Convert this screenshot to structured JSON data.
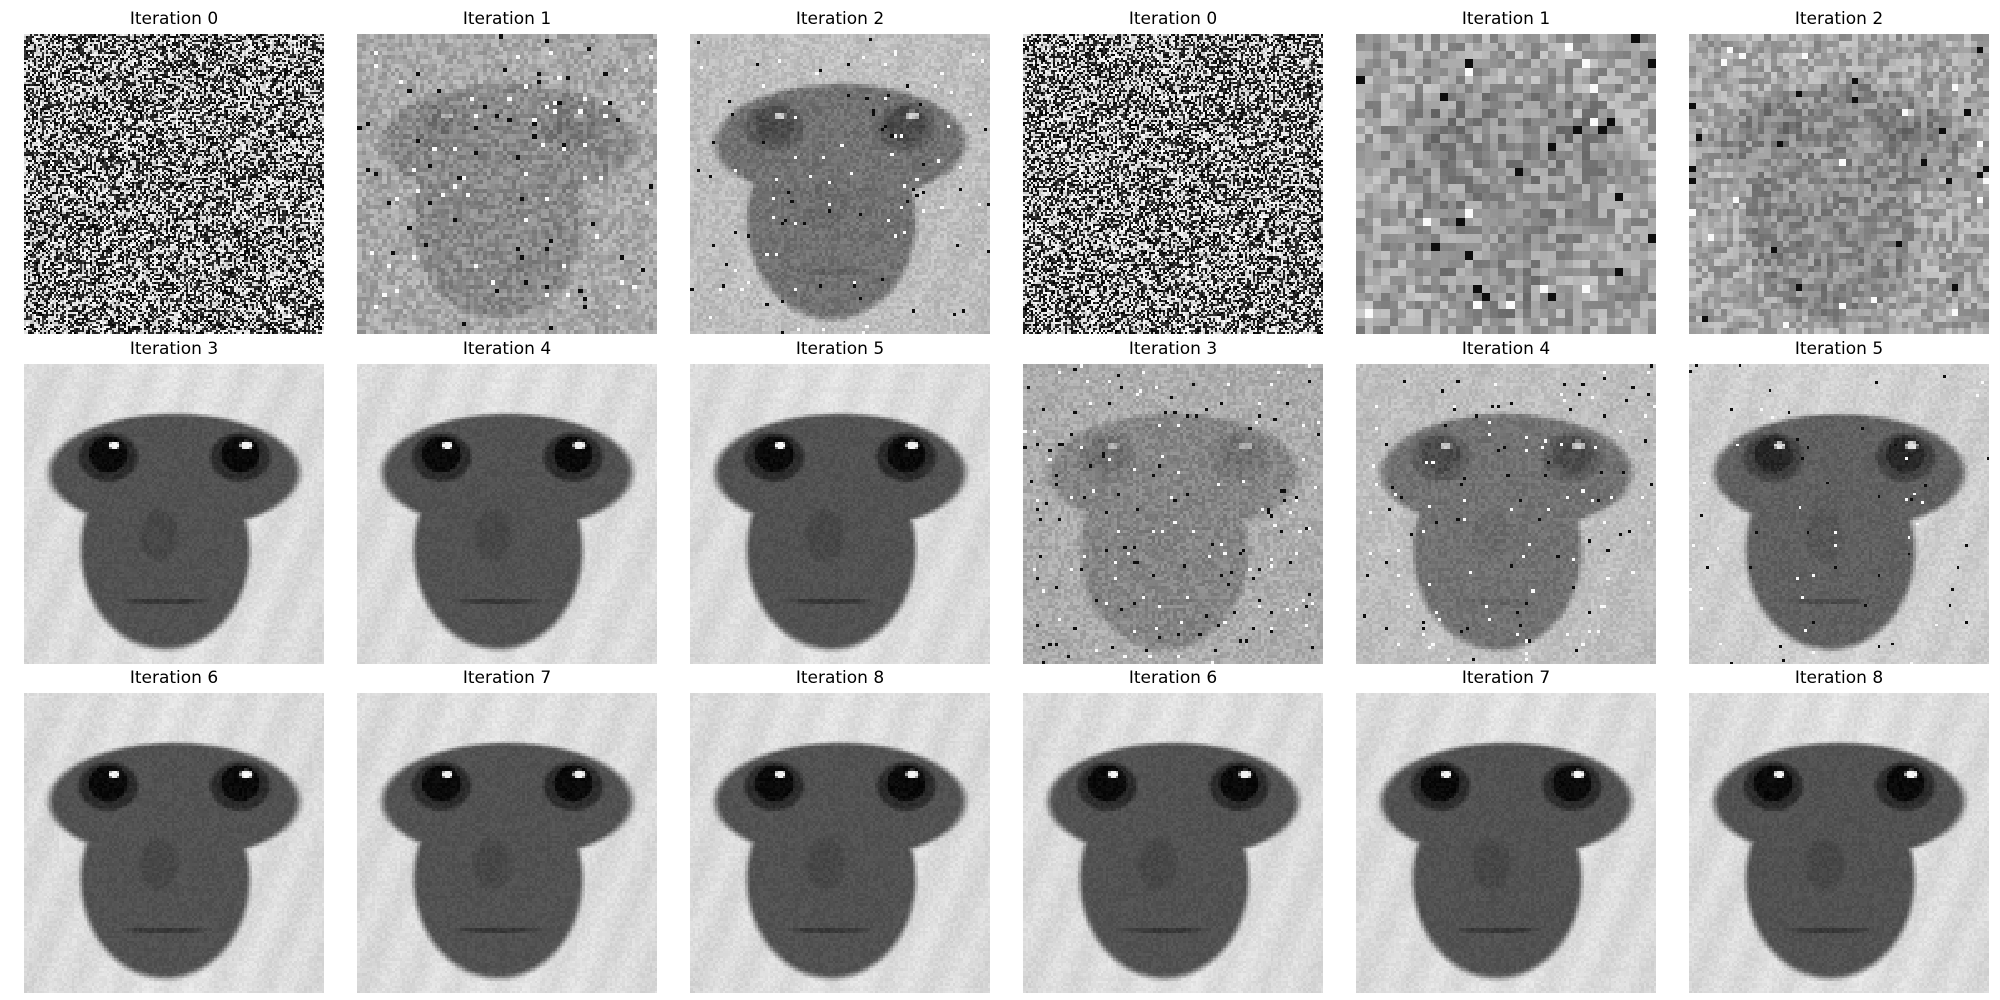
{
  "figure": {
    "panels": [
      {
        "title": "Iteration 0",
        "render": {
          "mode": "noise",
          "seed": 11
        }
      },
      {
        "title": "Iteration 1",
        "render": {
          "mode": "face",
          "res": 72,
          "contrast": 0.22,
          "noise": 0.1,
          "speck": 0.02,
          "seed": 21
        }
      },
      {
        "title": "Iteration 2",
        "render": {
          "mode": "face",
          "res": 96,
          "contrast": 0.55,
          "noise": 0.06,
          "speck": 0.01,
          "seed": 31
        }
      },
      {
        "title": "Iteration 0",
        "render": {
          "mode": "noise",
          "seed": 41
        }
      },
      {
        "title": "Iteration 1",
        "render": {
          "mode": "face",
          "res": 36,
          "contrast": 0.12,
          "noise": 0.16,
          "speck": 0.02,
          "seed": 51
        }
      },
      {
        "title": "Iteration 2",
        "render": {
          "mode": "face",
          "res": 48,
          "contrast": 0.18,
          "noise": 0.14,
          "speck": 0.02,
          "seed": 61
        }
      },
      {
        "title": "Iteration 3",
        "render": {
          "mode": "face",
          "res": 120,
          "contrast": 1.0,
          "noise": 0.03,
          "speck": 0.0,
          "seed": 71
        }
      },
      {
        "title": "Iteration 4",
        "render": {
          "mode": "face",
          "res": 120,
          "contrast": 1.0,
          "noise": 0.03,
          "speck": 0.0,
          "seed": 81
        }
      },
      {
        "title": "Iteration 5",
        "render": {
          "mode": "face",
          "res": 120,
          "contrast": 1.0,
          "noise": 0.03,
          "speck": 0.0,
          "seed": 91
        }
      },
      {
        "title": "Iteration 3",
        "render": {
          "mode": "face",
          "res": 96,
          "contrast": 0.28,
          "noise": 0.07,
          "speck": 0.02,
          "seed": 101
        }
      },
      {
        "title": "Iteration 4",
        "render": {
          "mode": "face",
          "res": 96,
          "contrast": 0.55,
          "noise": 0.05,
          "speck": 0.015,
          "seed": 111
        }
      },
      {
        "title": "Iteration 5",
        "render": {
          "mode": "face",
          "res": 110,
          "contrast": 0.8,
          "noise": 0.04,
          "speck": 0.005,
          "seed": 121
        }
      },
      {
        "title": "Iteration 6",
        "render": {
          "mode": "face",
          "res": 120,
          "contrast": 1.0,
          "noise": 0.03,
          "speck": 0.0,
          "seed": 131
        }
      },
      {
        "title": "Iteration 7",
        "render": {
          "mode": "face",
          "res": 120,
          "contrast": 1.0,
          "noise": 0.03,
          "speck": 0.0,
          "seed": 141
        }
      },
      {
        "title": "Iteration 8",
        "render": {
          "mode": "face",
          "res": 120,
          "contrast": 1.0,
          "noise": 0.03,
          "speck": 0.0,
          "seed": 151
        }
      },
      {
        "title": "Iteration 6",
        "render": {
          "mode": "face",
          "res": 120,
          "contrast": 1.0,
          "noise": 0.03,
          "speck": 0.0,
          "seed": 161
        }
      },
      {
        "title": "Iteration 7",
        "render": {
          "mode": "face",
          "res": 120,
          "contrast": 1.0,
          "noise": 0.03,
          "speck": 0.0,
          "seed": 171
        }
      },
      {
        "title": "Iteration 8",
        "render": {
          "mode": "face",
          "res": 120,
          "contrast": 1.0,
          "noise": 0.03,
          "speck": 0.0,
          "seed": 181
        }
      }
    ]
  }
}
